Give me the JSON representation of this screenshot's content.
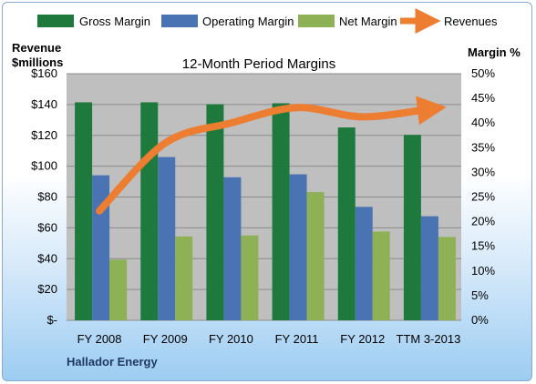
{
  "chart_data": {
    "type": "bar",
    "title": "12-Month Period Margins",
    "categories": [
      "FY 2008",
      "FY 2009",
      "FY 2010",
      "FY 2011",
      "FY 2012",
      "TTM 3-2013"
    ],
    "left_axis": {
      "label_line1": "Revenue",
      "label_line2": "$millions",
      "ticks": [
        "$-",
        "$20",
        "$40",
        "$60",
        "$80",
        "$100",
        "$120",
        "$140",
        "$160"
      ],
      "range": [
        0,
        160
      ]
    },
    "right_axis": {
      "label": "Margin %",
      "ticks": [
        "0%",
        "5%",
        "10%",
        "15%",
        "20%",
        "25%",
        "30%",
        "35%",
        "40%",
        "45%",
        "50%"
      ],
      "range": [
        0,
        50
      ]
    },
    "series": [
      {
        "name": "Gross Margin",
        "axis": "right",
        "color": "#1e7a3c",
        "values": [
          44.2,
          44.2,
          43.8,
          44.0,
          39.1,
          37.6
        ]
      },
      {
        "name": "Operating Margin",
        "axis": "right",
        "color": "#4a73b3",
        "values": [
          29.4,
          33.1,
          29.0,
          29.6,
          23.0,
          21.1
        ]
      },
      {
        "name": "Net Margin",
        "axis": "right",
        "color": "#8fb156",
        "values": [
          12.3,
          17.0,
          17.2,
          26.0,
          18.0,
          16.9
        ]
      },
      {
        "name": "Revenues",
        "axis": "left",
        "type": "line",
        "color": "#ed7d31",
        "values": [
          71,
          115,
          128,
          138,
          132,
          137
        ]
      }
    ],
    "legend_position": "top",
    "grid": true
  },
  "footer": "Hallador Energy"
}
